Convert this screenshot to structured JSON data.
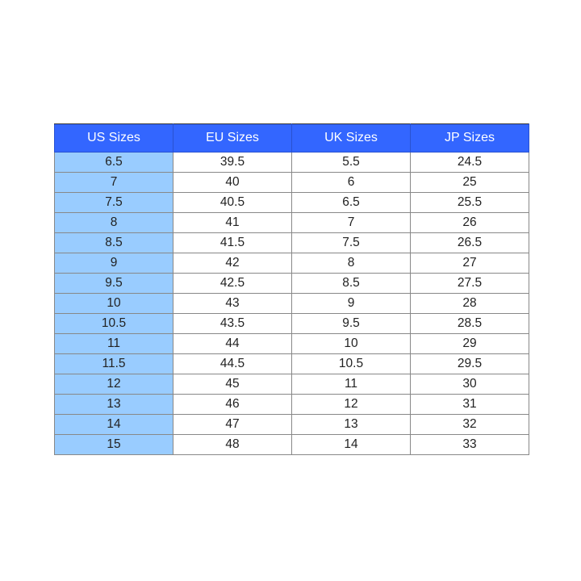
{
  "colors": {
    "header_bg": "#3366ff",
    "first_column_bg": "#99ccff"
  },
  "chart_data": {
    "type": "table",
    "columns": [
      "US Sizes",
      "EU Sizes",
      "UK Sizes",
      "JP Sizes"
    ],
    "rows": [
      [
        "6.5",
        "39.5",
        "5.5",
        "24.5"
      ],
      [
        "7",
        "40",
        "6",
        "25"
      ],
      [
        "7.5",
        "40.5",
        "6.5",
        "25.5"
      ],
      [
        "8",
        "41",
        "7",
        "26"
      ],
      [
        "8.5",
        "41.5",
        "7.5",
        "26.5"
      ],
      [
        "9",
        "42",
        "8",
        "27"
      ],
      [
        "9.5",
        "42.5",
        "8.5",
        "27.5"
      ],
      [
        "10",
        "43",
        "9",
        "28"
      ],
      [
        "10.5",
        "43.5",
        "9.5",
        "28.5"
      ],
      [
        "11",
        "44",
        "10",
        "29"
      ],
      [
        "11.5",
        "44.5",
        "10.5",
        "29.5"
      ],
      [
        "12",
        "45",
        "11",
        "30"
      ],
      [
        "13",
        "46",
        "12",
        "31"
      ],
      [
        "14",
        "47",
        "13",
        "32"
      ],
      [
        "15",
        "48",
        "14",
        "33"
      ]
    ]
  }
}
